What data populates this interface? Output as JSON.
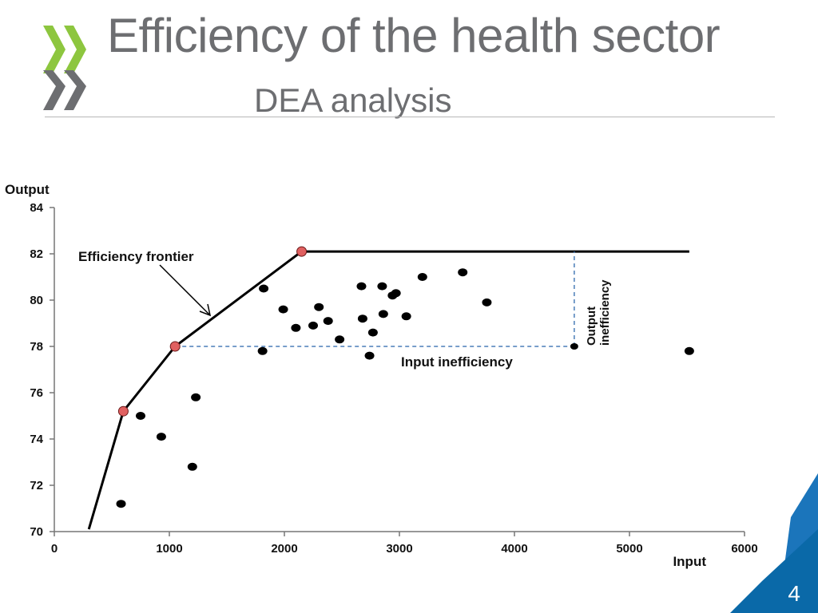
{
  "slide": {
    "title": "Efficiency of the health sector",
    "subtitle": "DEA analysis",
    "page_number": "4"
  },
  "colors": {
    "accent_green": "#8dc63f",
    "brand_blue": "#0a69a8",
    "title_grey": "#6d6e71",
    "frontier_point": "#e06060",
    "dashed_line": "#4a7db8"
  },
  "chart_data": {
    "type": "scatter",
    "xlabel": "Input",
    "ylabel": "Output",
    "xlim": [
      0,
      6000
    ],
    "ylim": [
      70,
      84
    ],
    "xticks": [
      0,
      1000,
      2000,
      3000,
      4000,
      5000,
      6000
    ],
    "yticks": [
      70,
      72,
      74,
      76,
      78,
      80,
      82,
      84
    ],
    "grid": false,
    "points": [
      {
        "x": 580,
        "y": 71.2
      },
      {
        "x": 750,
        "y": 75.0
      },
      {
        "x": 930,
        "y": 74.1
      },
      {
        "x": 1200,
        "y": 72.8
      },
      {
        "x": 1230,
        "y": 75.8
      },
      {
        "x": 1810,
        "y": 77.8
      },
      {
        "x": 1820,
        "y": 80.5
      },
      {
        "x": 1990,
        "y": 79.6
      },
      {
        "x": 2100,
        "y": 78.8
      },
      {
        "x": 2250,
        "y": 78.9
      },
      {
        "x": 2300,
        "y": 79.7
      },
      {
        "x": 2380,
        "y": 79.1
      },
      {
        "x": 2480,
        "y": 78.3
      },
      {
        "x": 2670,
        "y": 80.6
      },
      {
        "x": 2680,
        "y": 79.2
      },
      {
        "x": 2740,
        "y": 77.6
      },
      {
        "x": 2770,
        "y": 78.6
      },
      {
        "x": 2850,
        "y": 80.6
      },
      {
        "x": 2860,
        "y": 79.4
      },
      {
        "x": 2940,
        "y": 80.2
      },
      {
        "x": 2970,
        "y": 80.3
      },
      {
        "x": 3060,
        "y": 79.3
      },
      {
        "x": 3200,
        "y": 81.0
      },
      {
        "x": 3550,
        "y": 81.2
      },
      {
        "x": 3760,
        "y": 79.9
      },
      {
        "x": 5520,
        "y": 77.8
      }
    ],
    "frontier": {
      "name": "Efficiency frontier",
      "x": [
        300,
        600,
        1050,
        2150,
        5520
      ],
      "y": [
        70.1,
        75.2,
        78.0,
        82.1,
        82.1
      ],
      "efficient_points": [
        {
          "x": 600,
          "y": 75.2
        },
        {
          "x": 1050,
          "y": 78.0
        },
        {
          "x": 2150,
          "y": 82.1
        }
      ]
    },
    "inefficient_point": {
      "x": 4520,
      "y": 78.0
    },
    "annotations": {
      "frontier_label": "Efficiency frontier",
      "input_inefficiency": "Input inefficiency",
      "output_inefficiency": [
        "Output",
        "inefficiency"
      ]
    }
  }
}
